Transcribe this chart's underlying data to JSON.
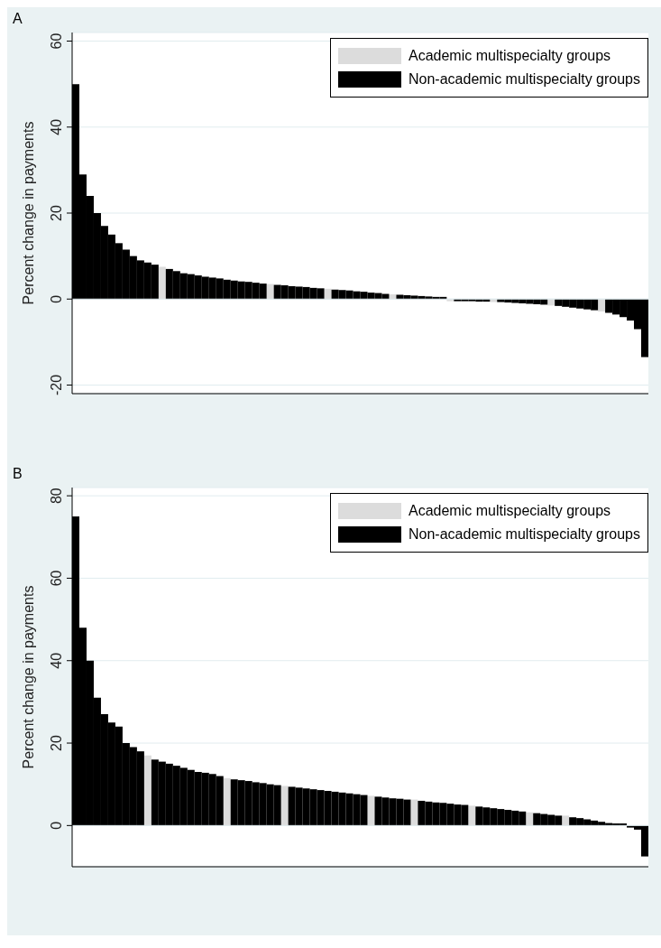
{
  "chart_data": [
    {
      "type": "bar",
      "title": "A",
      "ylabel": "Percent change in payments",
      "stacked": true,
      "grid": "y",
      "legend": "top right",
      "ylim": [
        -22,
        62
      ],
      "yticks": [
        -20,
        0,
        20,
        40,
        60
      ],
      "categories": [
        null,
        null,
        null,
        null,
        null,
        null,
        null,
        null,
        null,
        null,
        null,
        null,
        null,
        null,
        null,
        null,
        null,
        null,
        null,
        null,
        null,
        null,
        null,
        null,
        null,
        null,
        null,
        null,
        null,
        null,
        null,
        null,
        null,
        null,
        null,
        null,
        null,
        null,
        null,
        null,
        null,
        null,
        null,
        null,
        null,
        null,
        null,
        null,
        null,
        null,
        null,
        null,
        null,
        null,
        null,
        null,
        null,
        null,
        null,
        null,
        null,
        null,
        null,
        null,
        null,
        null,
        null,
        null,
        null,
        null,
        null,
        null,
        null,
        null,
        null,
        null,
        null,
        null,
        null,
        null
      ],
      "series": [
        {
          "name": "Academic multispecialty groups",
          "color": "#dcdcdc",
          "values": [
            null,
            null,
            null,
            null,
            null,
            null,
            null,
            null,
            null,
            null,
            null,
            null,
            7.5,
            null,
            null,
            null,
            null,
            null,
            null,
            null,
            null,
            null,
            null,
            null,
            null,
            null,
            null,
            3.5,
            null,
            null,
            null,
            null,
            null,
            null,
            null,
            2.4,
            null,
            null,
            null,
            null,
            null,
            null,
            null,
            null,
            1.1,
            null,
            null,
            null,
            null,
            null,
            null,
            null,
            -0.5,
            null,
            null,
            null,
            null,
            null,
            -0.7,
            null,
            null,
            null,
            null,
            null,
            null,
            null,
            -1.5,
            null,
            null,
            null,
            null,
            null,
            null,
            -2.9,
            null,
            null,
            null,
            null,
            null,
            null
          ]
        },
        {
          "name": "Non-academic multispecialty groups",
          "color": "#000000",
          "values": [
            50,
            29,
            24,
            20,
            17,
            15,
            13,
            11.5,
            10,
            9,
            8.5,
            8,
            null,
            7,
            6.5,
            6,
            5.8,
            5.5,
            5.2,
            5,
            4.8,
            4.5,
            4.3,
            4.1,
            4,
            3.8,
            3.6,
            null,
            3.3,
            3.2,
            3,
            2.9,
            2.8,
            2.6,
            2.5,
            null,
            2.2,
            2.1,
            2,
            1.8,
            1.7,
            1.5,
            1.4,
            1.2,
            null,
            1,
            0.9,
            0.8,
            0.7,
            0.6,
            0.5,
            0.5,
            null,
            -0.5,
            -0.5,
            -0.5,
            -0.6,
            -0.6,
            null,
            -0.7,
            -0.8,
            -0.9,
            -1,
            -1.1,
            -1.2,
            -1.3,
            null,
            -1.6,
            -1.8,
            -2,
            -2.2,
            -2.4,
            -2.6,
            null,
            -3.2,
            -3.6,
            -4.2,
            -5,
            -7,
            -13.5
          ]
        }
      ]
    },
    {
      "type": "bar",
      "title": "B",
      "ylabel": "Percent change in payments",
      "stacked": true,
      "grid": "y",
      "legend": "top right",
      "ylim": [
        -10,
        82
      ],
      "yticks": [
        0,
        20,
        40,
        60,
        80
      ],
      "categories": [
        null,
        null,
        null,
        null,
        null,
        null,
        null,
        null,
        null,
        null,
        null,
        null,
        null,
        null,
        null,
        null,
        null,
        null,
        null,
        null,
        null,
        null,
        null,
        null,
        null,
        null,
        null,
        null,
        null,
        null,
        null,
        null,
        null,
        null,
        null,
        null,
        null,
        null,
        null,
        null,
        null,
        null,
        null,
        null,
        null,
        null,
        null,
        null,
        null,
        null,
        null,
        null,
        null,
        null,
        null,
        null,
        null,
        null,
        null,
        null,
        null,
        null,
        null,
        null,
        null,
        null,
        null,
        null,
        null,
        null,
        null,
        null,
        null,
        null,
        null,
        null,
        null,
        null,
        null,
        null
      ],
      "series": [
        {
          "name": "Academic multispecialty groups",
          "color": "#dcdcdc",
          "values": [
            null,
            null,
            null,
            null,
            null,
            null,
            null,
            null,
            null,
            null,
            17,
            null,
            null,
            null,
            null,
            null,
            null,
            null,
            null,
            null,
            null,
            11.5,
            null,
            null,
            null,
            null,
            null,
            null,
            null,
            9.6,
            null,
            null,
            null,
            null,
            null,
            null,
            null,
            null,
            null,
            null,
            null,
            7.2,
            null,
            null,
            null,
            null,
            null,
            6.3,
            null,
            null,
            null,
            null,
            null,
            null,
            null,
            4.8,
            null,
            null,
            null,
            null,
            null,
            null,
            null,
            3.2,
            null,
            null,
            null,
            null,
            2.4,
            null,
            null,
            null,
            null,
            null,
            null,
            null,
            null,
            null,
            null,
            null
          ]
        },
        {
          "name": "Non-academic multispecialty groups",
          "color": "#000000",
          "values": [
            75,
            48,
            40,
            31,
            27,
            25,
            24,
            20,
            19,
            18,
            null,
            16,
            15.5,
            15,
            14.5,
            14,
            13.5,
            13,
            12.8,
            12.5,
            12,
            null,
            11.2,
            11,
            10.8,
            10.5,
            10.3,
            10,
            9.8,
            null,
            9.4,
            9.2,
            9,
            8.8,
            8.6,
            8.4,
            8.2,
            8,
            7.8,
            7.6,
            7.4,
            null,
            7,
            6.8,
            6.6,
            6.5,
            6.3,
            null,
            6,
            5.8,
            5.6,
            5.5,
            5.3,
            5.1,
            5,
            null,
            4.6,
            4.4,
            4.2,
            4,
            3.8,
            3.6,
            3.4,
            null,
            3,
            2.8,
            2.6,
            2.4,
            null,
            2,
            1.8,
            1.5,
            1.2,
            0.9,
            0.6,
            0.5,
            0.5,
            -0.5,
            -1,
            -7.5
          ]
        }
      ]
    }
  ]
}
